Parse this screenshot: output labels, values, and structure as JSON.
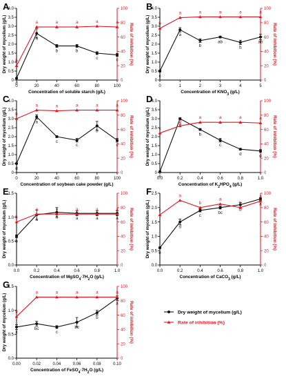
{
  "figure": {
    "legend": {
      "black_label": "Dry weight of mycelium (g/L)",
      "red_label": "Rate of inhibition (%)"
    },
    "colors": {
      "black": "#111111",
      "red": "#e3161f"
    }
  },
  "chart_data": [
    {
      "panel": "A",
      "type": "line",
      "xlabel": "Concentration of soluble starch (g/L)",
      "ylabel_left": "Dry weight of mycelium (g/L)",
      "ylabel_right": "Rate of inhibition (%)",
      "x": [
        0,
        20,
        40,
        60,
        80,
        100
      ],
      "xticks": [
        "0",
        "20",
        "40",
        "60",
        "80",
        "100"
      ],
      "ylim_left": [
        0,
        4
      ],
      "yticks_left": [
        "0",
        "0.5",
        "1.0",
        "1.5",
        "2.0",
        "2.5",
        "3.0",
        "3.5",
        "4.0"
      ],
      "ylim_right": [
        0,
        100
      ],
      "yticks_right": [
        "0",
        "20",
        "40",
        "60",
        "80",
        "100"
      ],
      "series": [
        {
          "name": "Dry weight of mycelium (g/L)",
          "axis": "left",
          "values": [
            0.1,
            2.6,
            1.9,
            1.9,
            1.5,
            1.4
          ],
          "err": [
            0.03,
            0.25,
            0.08,
            0.08,
            0.08,
            0.08
          ],
          "letters": [
            "d",
            "a",
            "b",
            "b",
            "c",
            "c"
          ]
        },
        {
          "name": "Rate of inhibition (%)",
          "axis": "right",
          "values": [
            20,
            74,
            74,
            74,
            75,
            74
          ],
          "err": [
            0,
            0,
            0,
            0,
            0,
            0
          ],
          "letters": [
            "b",
            "a",
            "a",
            "a",
            "a",
            "a"
          ]
        }
      ]
    },
    {
      "panel": "B",
      "type": "line",
      "xlabel": "Concentration of KNO",
      "xlabel_sub": "3",
      "xlabel_tail": " (g/L)",
      "ylabel_left": "Dry weight of mycelium (g/L)",
      "ylabel_right": "Rate of inhibition (%)",
      "x": [
        0,
        1,
        2,
        3,
        4,
        5
      ],
      "xticks": [
        "0",
        "1",
        "2",
        "3",
        "4",
        "5"
      ],
      "ylim_left": [
        0,
        4
      ],
      "yticks_left": [
        "0",
        "0.5",
        "1.0",
        "1.5",
        "2.0",
        "2.5",
        "3.0",
        "3.5",
        "4.0"
      ],
      "ylim_right": [
        0,
        100
      ],
      "yticks_right": [
        "0",
        "20",
        "40",
        "60",
        "80",
        "100"
      ],
      "series": [
        {
          "name": "Dry weight of mycelium (g/L)",
          "axis": "left",
          "values": [
            0.5,
            2.8,
            2.2,
            2.4,
            2.1,
            2.4
          ],
          "err": [
            0.05,
            0.12,
            0.1,
            0.05,
            0.12,
            0.15
          ],
          "letters": [
            "c",
            "a",
            "b",
            "ab",
            "b",
            "ab"
          ]
        },
        {
          "name": "Rate of inhibition (%)",
          "axis": "right",
          "values": [
            72,
            87,
            88,
            88,
            88,
            88
          ],
          "err": [
            0,
            0,
            0,
            0,
            0,
            0
          ],
          "letters": [
            "b",
            "a",
            "a",
            "a",
            "a",
            "a"
          ]
        }
      ]
    },
    {
      "panel": "C",
      "type": "line",
      "xlabel": "Concentration of soybean cake powder (g/L)",
      "ylabel_left": "Dry weight of mycelium (g/L)",
      "ylabel_right": "Rate of inhibition (%)",
      "x": [
        0,
        20,
        40,
        60,
        80,
        100
      ],
      "xticks": [
        "0",
        "20",
        "40",
        "60",
        "80",
        "100"
      ],
      "ylim_left": [
        0,
        4
      ],
      "yticks_left": [
        "0",
        "0.5",
        "1.0",
        "1.5",
        "2.0",
        "2.5",
        "3.0",
        "3.5",
        "4.0"
      ],
      "ylim_right": [
        0,
        100
      ],
      "yticks_right": [
        "0",
        "20",
        "40",
        "60",
        "80",
        "100"
      ],
      "series": [
        {
          "name": "Dry weight of mycelium (g/L)",
          "axis": "left",
          "values": [
            0.5,
            3.1,
            2.0,
            1.8,
            2.6,
            1.8
          ],
          "err": [
            0.03,
            0.12,
            0.05,
            0.1,
            0.25,
            0.1
          ],
          "letters": [
            "d",
            "a",
            "c",
            "c",
            "b",
            "c"
          ]
        },
        {
          "name": "Rate of inhibition (%)",
          "axis": "right",
          "values": [
            75,
            87,
            86,
            87,
            87,
            87
          ],
          "err": [
            0,
            0,
            0,
            0,
            0,
            0
          ],
          "letters": [
            "b",
            "a",
            "a",
            "a",
            "a",
            "a"
          ]
        }
      ]
    },
    {
      "panel": "D",
      "type": "line",
      "xlabel": "Concentration of K",
      "xlabel_sub": "2",
      "xlabel_tail": "HPO",
      "xlabel_sub2": "4",
      "xlabel_tail2": " (g/L)",
      "ylabel_left": "Dry weight of mycelium (g/L)",
      "ylabel_right": "Rate of inhibition (%)",
      "x": [
        0,
        0.2,
        0.4,
        0.6,
        0.8,
        1.0
      ],
      "xticks": [
        "0.0",
        "0.2",
        "0.4",
        "0.6",
        "0.8",
        "1.0"
      ],
      "ylim_left": [
        0,
        4
      ],
      "yticks_left": [
        "0",
        "0.5",
        "1.0",
        "1.5",
        "2.0",
        "2.5",
        "3.0",
        "3.5",
        "4.0"
      ],
      "ylim_right": [
        0,
        100
      ],
      "yticks_right": [
        "0",
        "20",
        "40",
        "60",
        "80",
        "100"
      ],
      "series": [
        {
          "name": "Dry weight of mycelium (g/L)",
          "axis": "left",
          "values": [
            0.05,
            3.0,
            2.4,
            1.8,
            1.3,
            1.2
          ],
          "err": [
            0.03,
            0.05,
            0.05,
            0.1,
            0.05,
            0.08
          ],
          "letters": [
            "e",
            "a",
            "b",
            "c",
            "d",
            "d"
          ]
        },
        {
          "name": "Rate of inhibition (%)",
          "axis": "right",
          "values": [
            55,
            65,
            70,
            70,
            70,
            69
          ],
          "err": [
            0,
            0,
            0,
            0,
            0,
            0
          ],
          "letters": [
            "c",
            "b",
            "a",
            "a",
            "a",
            "a"
          ]
        }
      ]
    },
    {
      "panel": "E",
      "type": "line",
      "xlabel": "Concentration of MgSO",
      "xlabel_sub": "4",
      "xlabel_tail": "·7H",
      "xlabel_sub2": "2",
      "xlabel_tail2": "O (g/L)",
      "ylabel_left": "Dry weight of mycelium (g/L)",
      "ylabel_right": "Rate of inhibition (%)",
      "x": [
        0,
        0.2,
        0.4,
        0.6,
        0.8,
        1.0
      ],
      "xticks": [
        "0.0",
        "0.2",
        "0.4",
        "0.6",
        "0.8",
        "1.0"
      ],
      "ylim_left": [
        0,
        1.5
      ],
      "yticks_left": [
        "0.0",
        "0.5",
        "1.0",
        "1.5"
      ],
      "ylim_right": [
        0,
        100
      ],
      "yticks_right": [
        "0",
        "20",
        "40",
        "60",
        "80",
        "100"
      ],
      "series": [
        {
          "name": "Dry weight of mycelium (g/L)",
          "axis": "left",
          "values": [
            0.6,
            1.05,
            1.1,
            1.08,
            1.08,
            1.08
          ],
          "err": [
            0.03,
            0.1,
            0.1,
            0.05,
            0.05,
            0.05
          ],
          "letters": [
            "b",
            "a",
            "a",
            "a",
            "a",
            "a"
          ]
        },
        {
          "name": "Rate of inhibition (%)",
          "axis": "right",
          "values": [
            60,
            71,
            71,
            71,
            71,
            71
          ],
          "err": [
            0,
            0,
            0,
            0,
            0,
            0
          ],
          "letters": [
            "b",
            "a",
            "a",
            "a",
            "a",
            "a"
          ]
        }
      ]
    },
    {
      "panel": "F",
      "type": "line",
      "xlabel": "Concentration of CaCO",
      "xlabel_sub": "3",
      "xlabel_tail": " (g/L)",
      "ylabel_left": "Dry weight of mycelium (g/L)",
      "ylabel_right": "Rate of inhibition (%)",
      "x": [
        0,
        0.2,
        0.4,
        0.6,
        0.8,
        1.0
      ],
      "xticks": [
        "0.0",
        "0.2",
        "0.4",
        "0.6",
        "0.8",
        "1.0"
      ],
      "ylim_left": [
        0,
        2.5
      ],
      "yticks_left": [
        "0.0",
        "0.5",
        "1.0",
        "1.5",
        "2.0",
        "2.5"
      ],
      "ylim_right": [
        0,
        100
      ],
      "yticks_right": [
        "0",
        "20",
        "40",
        "60",
        "80",
        "100"
      ],
      "series": [
        {
          "name": "Dry weight of mycelium (g/L)",
          "axis": "left",
          "values": [
            0.6,
            1.5,
            1.9,
            2.0,
            2.1,
            2.3
          ],
          "err": [
            0.03,
            0.1,
            0.05,
            0.05,
            0.08,
            0.05
          ],
          "letters": [
            "e",
            "d",
            "c",
            "bc",
            "b",
            "a"
          ]
        },
        {
          "name": "Rate of inhibition (%)",
          "axis": "right",
          "values": [
            70,
            90,
            80,
            85,
            80,
            89
          ],
          "err": [
            0,
            0,
            0,
            0,
            0,
            0
          ],
          "letters": [
            "c",
            "a",
            "b",
            "a",
            "b",
            "a"
          ]
        }
      ]
    },
    {
      "panel": "G",
      "type": "line",
      "xlabel": "Concentration of FeSO",
      "xlabel_sub": "4",
      "xlabel_tail": "·7H",
      "xlabel_sub2": "2",
      "xlabel_tail2": "O (g/L)",
      "ylabel_left": "Dry weight of mycelium (g/L)",
      "ylabel_right": "Rate of inhibition (%)",
      "x": [
        0,
        0.02,
        0.04,
        0.06,
        0.08,
        0.1
      ],
      "xticks": [
        "0.00",
        "0.02",
        "0.04",
        "0.06",
        "0.08",
        "0.10"
      ],
      "ylim_left": [
        0,
        1.5
      ],
      "yticks_left": [
        "0.0",
        "0.5",
        "1.0",
        "1.5"
      ],
      "ylim_right": [
        0,
        100
      ],
      "yticks_right": [
        "0",
        "20",
        "40",
        "60",
        "80",
        "100"
      ],
      "series": [
        {
          "name": "Dry weight of mycelium (g/L)",
          "axis": "left",
          "values": [
            0.65,
            0.72,
            0.65,
            0.75,
            0.95,
            1.25
          ],
          "err": [
            0.05,
            0.05,
            0.03,
            0.1,
            0.05,
            0.05
          ],
          "letters": [
            "c",
            "bc",
            "c",
            "bc",
            "b",
            "a"
          ]
        },
        {
          "name": "Rate of inhibition (%)",
          "axis": "right",
          "values": [
            58,
            85,
            85,
            85,
            85,
            85
          ],
          "err": [
            0,
            0,
            0,
            0,
            0,
            0
          ],
          "letters": [
            "b",
            "a",
            "a",
            "a",
            "a",
            "a"
          ]
        }
      ]
    }
  ]
}
